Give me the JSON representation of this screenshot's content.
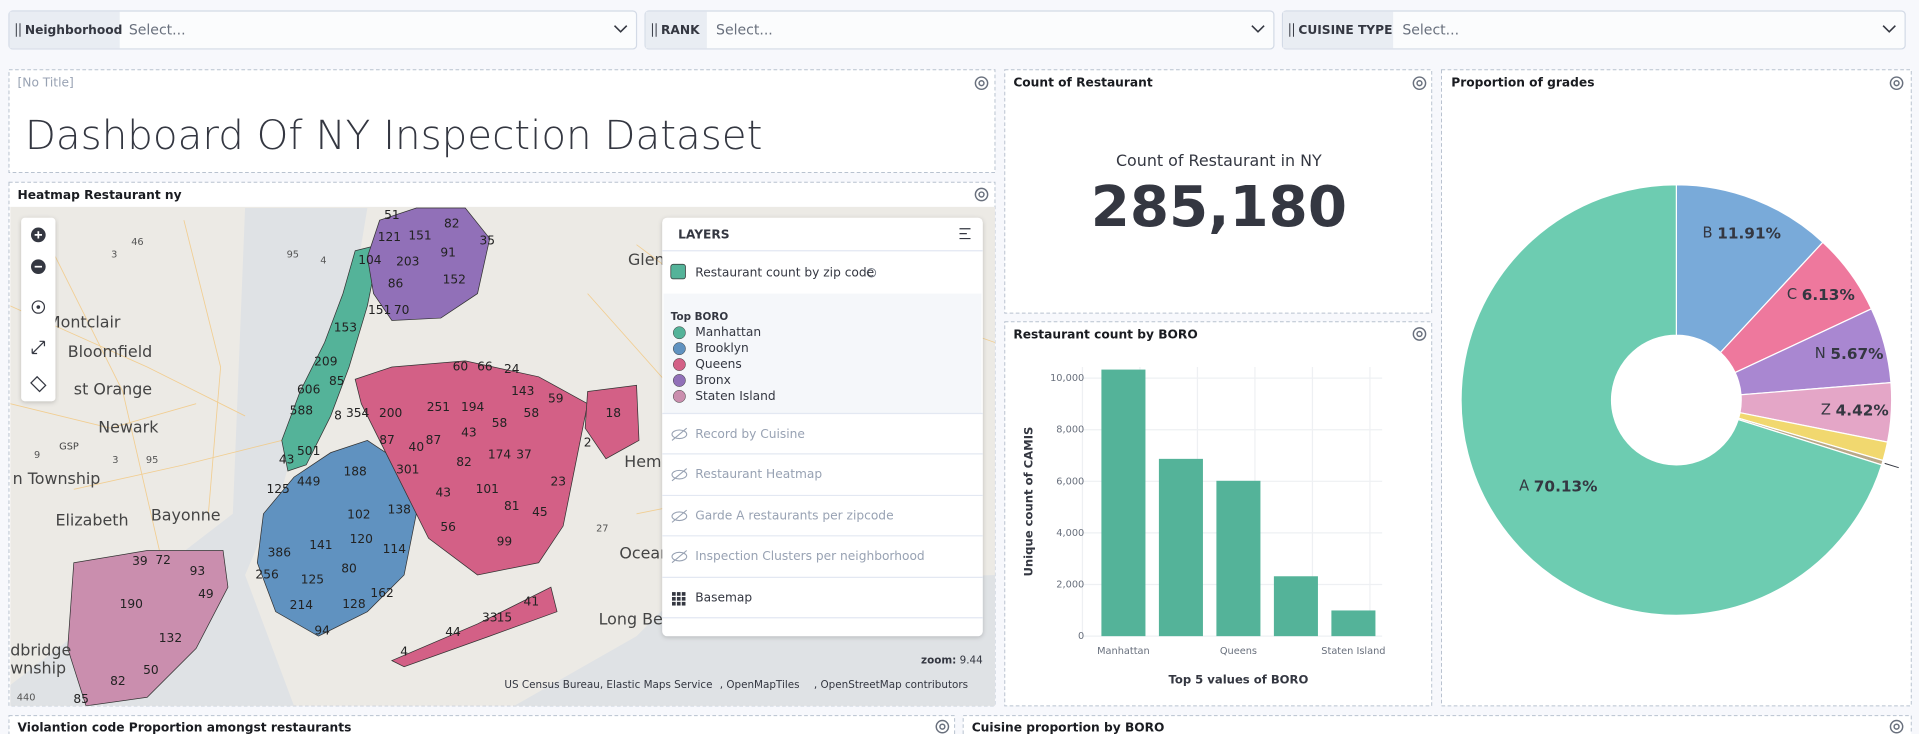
{
  "filters": [
    {
      "label": "Neighborhood",
      "placeholder": "Select..."
    },
    {
      "label": "RANK",
      "placeholder": "Select..."
    },
    {
      "label": "CUISINE TYPE",
      "placeholder": "Select..."
    }
  ],
  "title_panel": {
    "panel_title": "[No Title]",
    "text": "Dashboard Of NY Inspection Dataset"
  },
  "map_panel": {
    "panel_title": "Heatmap Restaurant ny",
    "places": [
      "Montclair",
      "Bloomfield",
      "st Orange",
      "Newark",
      "GSP",
      "n Township",
      "Elizabeth",
      "Bayonne",
      "Glen Co",
      "Hem",
      "Oceans",
      "Long Beach",
      "dbridge",
      "wnship"
    ],
    "labels": [
      "3",
      "46",
      "95",
      "4",
      "9",
      "3",
      "95",
      "27",
      "440",
      "51",
      "82",
      "121",
      "151",
      "91",
      "35",
      "104",
      "203",
      "86",
      "152",
      "70",
      "151",
      "153",
      "209",
      "606",
      "588",
      "85",
      "501",
      "43",
      "8",
      "60",
      "66",
      "24",
      "143",
      "59",
      "251",
      "194",
      "200",
      "354",
      "87",
      "40",
      "87",
      "43",
      "58",
      "58",
      "301",
      "174",
      "37",
      "82",
      "43",
      "18",
      "2",
      "101",
      "81",
      "23",
      "45",
      "99",
      "56",
      "188",
      "449",
      "102",
      "138",
      "386",
      "141",
      "120",
      "114",
      "256",
      "125",
      "80",
      "162",
      "214",
      "128",
      "94",
      "125",
      "39",
      "72",
      "93",
      "190",
      "49",
      "132",
      "50",
      "82",
      "85",
      "4",
      "44",
      "33",
      "15",
      "41"
    ],
    "layers": {
      "title": "LAYERS",
      "active_layer": "Restaurant count by zip code",
      "legend_title": "Top BORO",
      "legend": [
        {
          "name": "Manhattan",
          "color": "#54b399"
        },
        {
          "name": "Brooklyn",
          "color": "#6092c0"
        },
        {
          "name": "Queens",
          "color": "#d36086"
        },
        {
          "name": "Bronx",
          "color": "#9170b8"
        },
        {
          "name": "Staten Island",
          "color": "#ca8eae"
        }
      ],
      "hidden_layers": [
        "Record by Cuisine",
        "Restaurant Heatmap",
        "Garde A restaurants per zipcode",
        "Inspection Clusters per neighborhood"
      ],
      "basemap": "Basemap"
    },
    "zoom_label": "zoom:",
    "zoom": "9.44",
    "attribution": [
      "US Census Bureau, Elastic Maps Service",
      ", OpenMapTiles",
      ", OpenStreetMap contributors"
    ]
  },
  "metric_panel": {
    "panel_title": "Count of Restaurant",
    "label": "Count of Restaurant in NY",
    "value": "285,180"
  },
  "chart_data": [
    {
      "type": "bar",
      "title": "Restaurant count by BORO",
      "y_label": "Unique count of CAMIS",
      "x_label": "Top 5 values of BORO",
      "categories": [
        "Manhattan",
        null,
        "Queens",
        null,
        "Staten Island"
      ],
      "values": [
        10330,
        6870,
        6020,
        2320,
        995
      ],
      "color": "#54b399",
      "ylim": [
        0,
        10430
      ],
      "yticks": [
        0,
        {
          "value": 2000,
          "label": "2,000"
        },
        {
          "value": 4000,
          "label": "4,000"
        },
        {
          "value": 6000,
          "label": "6,000"
        },
        {
          "value": 8000,
          "label": "8,000"
        },
        {
          "value": 10000,
          "label": "10,000"
        }
      ],
      "grid": true
    },
    {
      "type": "pie",
      "title": "Proportion of grades",
      "categories": [
        "B",
        "C",
        "N",
        "Z",
        null,
        null,
        "A"
      ],
      "values": [
        11.91,
        6.13,
        5.67,
        4.42,
        1.4,
        0.34,
        70.13
      ],
      "value_labels": [
        "11.91%",
        "6.13%",
        "5.67%",
        "4.42%",
        null,
        null,
        "70.13%"
      ],
      "colors": [
        "#79aad9",
        "#ee789d",
        "#a987d1",
        "#e4a6c7",
        "#f1d86f",
        "#b9a888",
        "#6dccb1"
      ],
      "donut": true
    }
  ],
  "bottom_panels": [
    "Violantion code Proportion amongst restaurants",
    "Cuisine proportion by BORO"
  ]
}
